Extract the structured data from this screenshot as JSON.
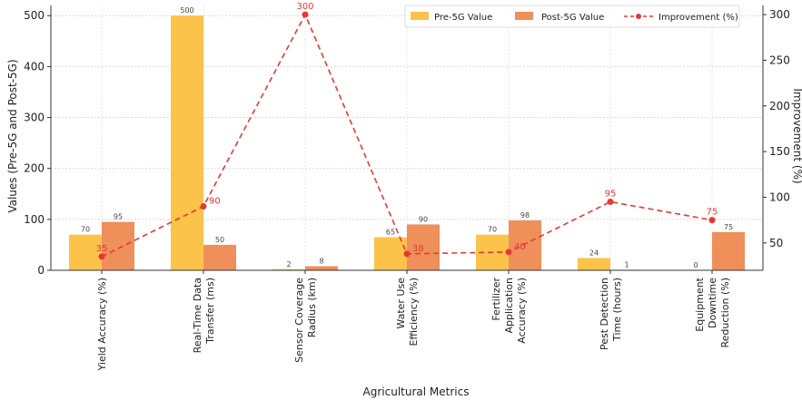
{
  "chart_data": {
    "type": "bar",
    "title": "",
    "xlabel": "Agricultural Metrics",
    "ylabel": "Values (Pre-5G and Post-5G)",
    "ylabel_right": "Improvement (%)",
    "ylim": [
      0,
      520
    ],
    "ylim_right": [
      20,
      310
    ],
    "yticks": [
      0,
      100,
      200,
      300,
      400,
      500
    ],
    "yticks_right": [
      50,
      100,
      150,
      200,
      250,
      300
    ],
    "grid": true,
    "legend_position": "top-right",
    "categories": [
      "Yield Accuracy (%)",
      "Real-Time Data Transfer (ms)",
      "Sensor Coverage Radius (km)",
      "Water Use Efficiency (%)",
      "Fertilizer Application Accuracy (%)",
      "Pest Detection Time (hours)",
      "Equipment Downtime Reduction (%)"
    ],
    "category_lines": [
      [
        "Yield Accuracy (%)"
      ],
      [
        "Real-Time Data",
        "Transfer (ms)"
      ],
      [
        "Sensor Coverage",
        "Radius (km)"
      ],
      [
        "Water Use",
        "Efficiency (%)"
      ],
      [
        "Fertilizer",
        "Application",
        "Accuracy (%)"
      ],
      [
        "Pest Detection",
        "Time (hours)"
      ],
      [
        "Equipment",
        "Downtime",
        "Reduction (%)"
      ]
    ],
    "series": [
      {
        "name": "Pre-5G Value",
        "type": "bar",
        "axis": "left",
        "color": "#fbc34a",
        "values": [
          70,
          500,
          2,
          65,
          70,
          24,
          0
        ]
      },
      {
        "name": "Post-5G Value",
        "type": "bar",
        "axis": "left",
        "color": "#ef8f5a",
        "values": [
          95,
          50,
          8,
          90,
          98,
          1,
          75
        ]
      },
      {
        "name": "Improvement (%)",
        "type": "line",
        "axis": "right",
        "color": "#e53935",
        "style": "dashed",
        "values": [
          35,
          90,
          300,
          38,
          40,
          95,
          75
        ]
      }
    ]
  }
}
